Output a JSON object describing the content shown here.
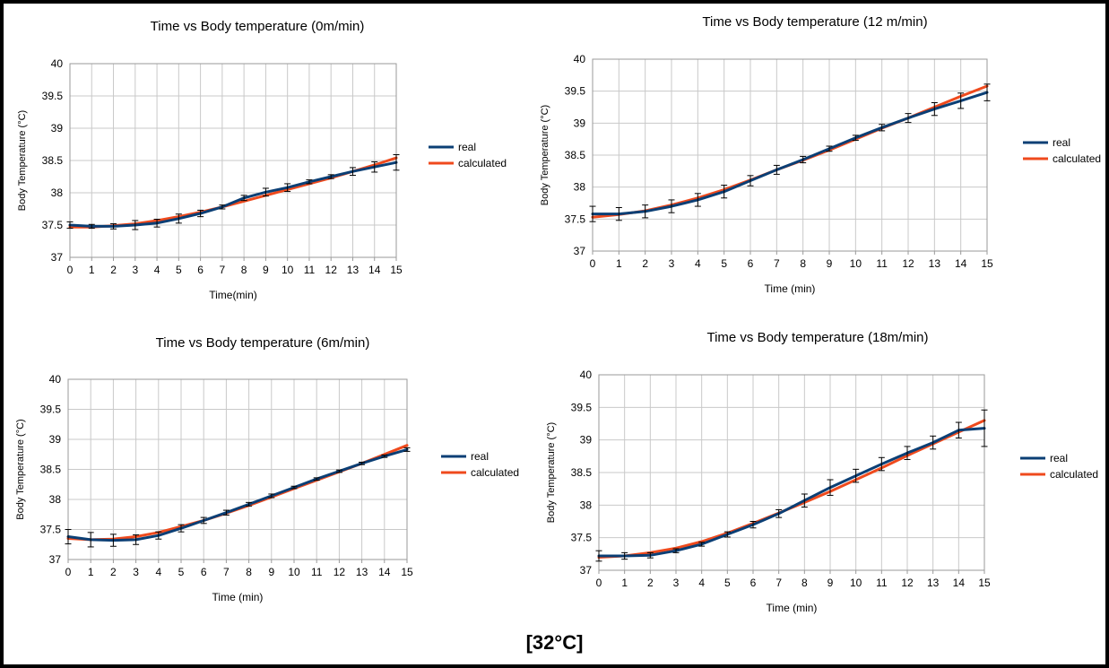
{
  "colors": {
    "real": "#0b3f75",
    "calculated": "#ef4a1d",
    "grid": "#c9c9c9",
    "axis": "#9a9a9a"
  },
  "footer_label": "[32°C]",
  "chart_data": [
    {
      "type": "line",
      "title": "Time vs Body temperature (0m/min)",
      "xlabel": "Time(min)",
      "ylabel": "Body Temperature (°C)",
      "x": [
        0,
        1,
        2,
        3,
        4,
        5,
        6,
        7,
        8,
        9,
        10,
        11,
        12,
        13,
        14,
        15
      ],
      "x_ticks": [
        "0",
        "1",
        "2",
        "3",
        "4",
        "5",
        "6",
        "7",
        "8",
        "9",
        "10",
        "11",
        "12",
        "13",
        "14",
        "15"
      ],
      "ylim": [
        37,
        40
      ],
      "y_ticks": [
        "37",
        "37.5",
        "38",
        "38.5",
        "39",
        "39.5",
        "40"
      ],
      "grid": true,
      "legend_position": "right",
      "series": [
        {
          "name": "real",
          "values": [
            37.5,
            37.48,
            37.48,
            37.5,
            37.53,
            37.6,
            37.68,
            37.78,
            37.92,
            38.01,
            38.08,
            38.17,
            38.25,
            38.33,
            38.4,
            38.47
          ],
          "errors": [
            0.05,
            0.03,
            0.04,
            0.07,
            0.06,
            0.07,
            0.05,
            0.03,
            0.04,
            0.06,
            0.06,
            0.03,
            0.03,
            0.06,
            0.08,
            0.12
          ]
        },
        {
          "name": "calculated",
          "values": [
            37.47,
            37.47,
            37.49,
            37.52,
            37.57,
            37.63,
            37.7,
            37.78,
            37.87,
            37.96,
            38.05,
            38.14,
            38.23,
            38.33,
            38.43,
            38.54
          ]
        }
      ]
    },
    {
      "type": "line",
      "title": "Time vs Body temperature (12 m/min)",
      "xlabel": "Time (min)",
      "ylabel": "Body Temperature (°C)",
      "x": [
        0,
        1,
        2,
        3,
        4,
        5,
        6,
        7,
        8,
        9,
        10,
        11,
        12,
        13,
        14,
        15
      ],
      "x_ticks": [
        "0",
        "1",
        "2",
        "3",
        "4",
        "5",
        "6",
        "7",
        "8",
        "9",
        "10",
        "11",
        "12",
        "13",
        "14",
        "15"
      ],
      "ylim": [
        37,
        40
      ],
      "y_ticks": [
        "37",
        "37.5",
        "38",
        "38.5",
        "39",
        "39.5",
        "40"
      ],
      "grid": true,
      "legend_position": "right",
      "series": [
        {
          "name": "real",
          "values": [
            37.58,
            37.58,
            37.62,
            37.7,
            37.8,
            37.93,
            38.1,
            38.27,
            38.43,
            38.6,
            38.77,
            38.93,
            39.08,
            39.22,
            39.35,
            39.48
          ],
          "errors": [
            0.12,
            0.1,
            0.1,
            0.1,
            0.1,
            0.1,
            0.08,
            0.07,
            0.05,
            0.04,
            0.04,
            0.05,
            0.07,
            0.1,
            0.12,
            0.13
          ]
        },
        {
          "name": "calculated",
          "values": [
            37.53,
            37.57,
            37.63,
            37.72,
            37.83,
            37.96,
            38.11,
            38.27,
            38.42,
            38.58,
            38.75,
            38.92,
            39.08,
            39.25,
            39.42,
            39.58
          ]
        }
      ]
    },
    {
      "type": "line",
      "title": "Time vs Body temperature (6m/min)",
      "xlabel": "Time (min)",
      "ylabel": "Body Temperature (°C)",
      "x": [
        0,
        1,
        2,
        3,
        4,
        5,
        6,
        7,
        8,
        9,
        10,
        11,
        12,
        13,
        14,
        15
      ],
      "x_ticks": [
        "0",
        "1",
        "2",
        "3",
        "4",
        "5",
        "6",
        "7",
        "8",
        "9",
        "10",
        "11",
        "12",
        "13",
        "14",
        "15"
      ],
      "ylim": [
        37,
        40
      ],
      "y_ticks": [
        "37",
        "37.5",
        "38",
        "38.5",
        "39",
        "39.5",
        "40"
      ],
      "grid": true,
      "legend_position": "right",
      "series": [
        {
          "name": "real",
          "values": [
            37.38,
            37.33,
            37.32,
            37.33,
            37.4,
            37.52,
            37.65,
            37.78,
            37.92,
            38.06,
            38.2,
            38.34,
            38.47,
            38.6,
            38.72,
            38.83
          ],
          "errors": [
            0.12,
            0.12,
            0.1,
            0.08,
            0.06,
            0.06,
            0.05,
            0.04,
            0.03,
            0.03,
            0.02,
            0.02,
            0.02,
            0.02,
            0.02,
            0.03
          ]
        },
        {
          "name": "calculated",
          "values": [
            37.35,
            37.33,
            37.34,
            37.38,
            37.45,
            37.55,
            37.65,
            37.77,
            37.9,
            38.04,
            38.18,
            38.32,
            38.46,
            38.6,
            38.75,
            38.9
          ]
        }
      ]
    },
    {
      "type": "line",
      "title": "Time vs Body temperature (18m/min)",
      "xlabel": "Time (min)",
      "ylabel": "Body Temperature (°C)",
      "x": [
        0,
        1,
        2,
        3,
        4,
        5,
        6,
        7,
        8,
        9,
        10,
        11,
        12,
        13,
        14,
        15
      ],
      "x_ticks": [
        "0",
        "1",
        "2",
        "3",
        "4",
        "5",
        "6",
        "7",
        "8",
        "9",
        "10",
        "11",
        "12",
        "13",
        "14",
        "15"
      ],
      "ylim": [
        37,
        40
      ],
      "y_ticks": [
        "37",
        "37.5",
        "38",
        "38.5",
        "39",
        "39.5",
        "40"
      ],
      "grid": true,
      "legend_position": "right",
      "series": [
        {
          "name": "real",
          "values": [
            37.22,
            37.22,
            37.23,
            37.3,
            37.4,
            37.55,
            37.7,
            37.87,
            38.07,
            38.27,
            38.45,
            38.63,
            38.8,
            38.96,
            39.15,
            39.18
          ],
          "errors": [
            0.08,
            0.05,
            0.04,
            0.03,
            0.03,
            0.04,
            0.05,
            0.06,
            0.1,
            0.12,
            0.1,
            0.1,
            0.1,
            0.1,
            0.12,
            0.28
          ]
        },
        {
          "name": "calculated",
          "values": [
            37.2,
            37.22,
            37.27,
            37.34,
            37.44,
            37.57,
            37.72,
            37.88,
            38.04,
            38.21,
            38.39,
            38.57,
            38.76,
            38.94,
            39.12,
            39.3
          ]
        }
      ]
    }
  ]
}
